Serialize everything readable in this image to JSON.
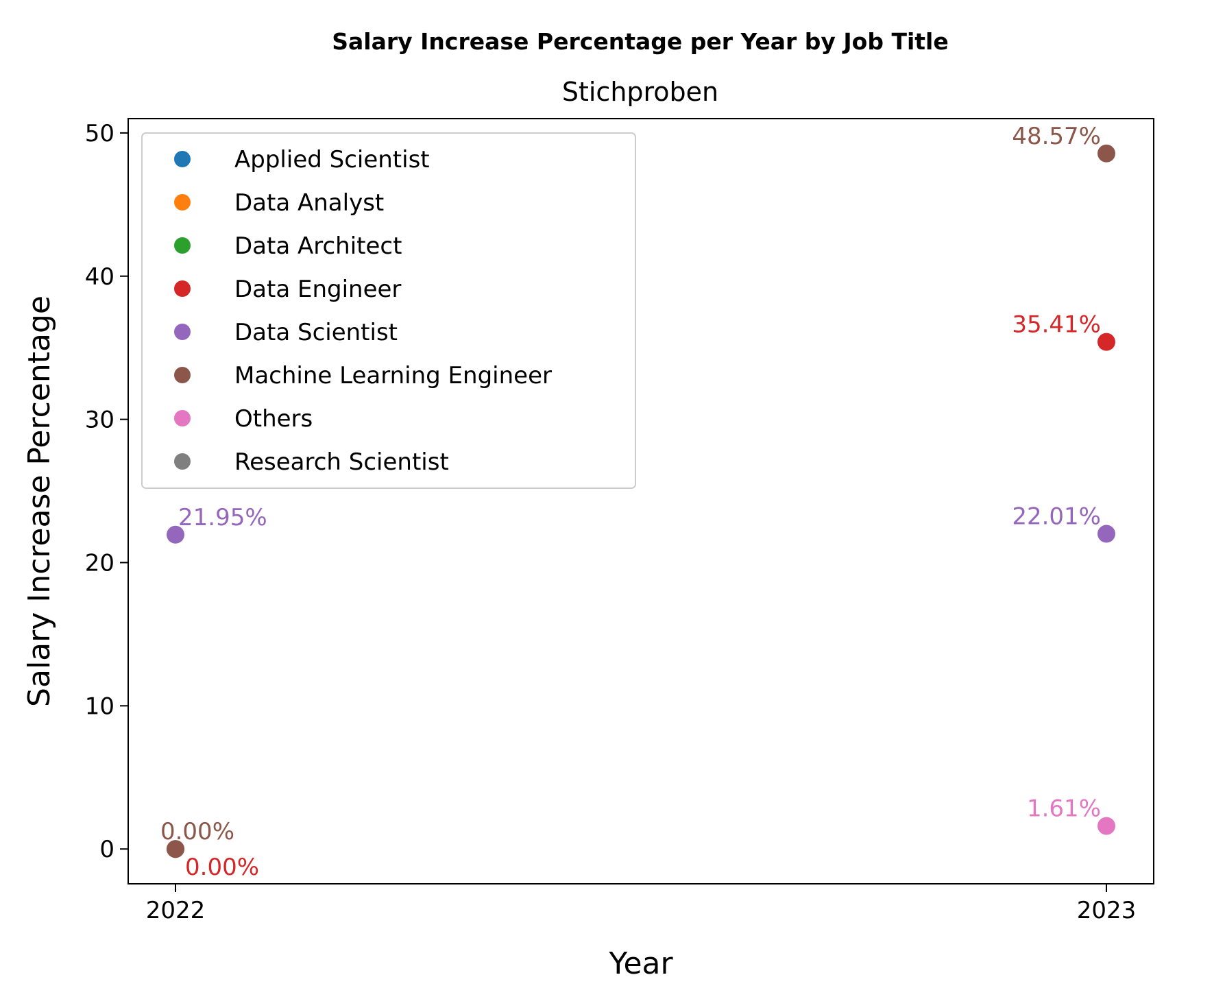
{
  "chart_data": {
    "type": "scatter",
    "title": "Salary Increase Percentage per Year by Job Title",
    "subtitle": "Stichproben",
    "xlabel": "Year",
    "ylabel": "Salary Increase Percentage",
    "x_categories": [
      "2022",
      "2023"
    ],
    "ylim": [
      -2.43,
      51.0
    ],
    "y_ticks": [
      "0",
      "10",
      "20",
      "30",
      "40",
      "50"
    ],
    "grid": false,
    "legend_position": "upper-left",
    "series": [
      {
        "name": "Applied Scientist",
        "color": "#1f77b4",
        "points": []
      },
      {
        "name": "Data Analyst",
        "color": "#ff7f0e",
        "points": []
      },
      {
        "name": "Data Architect",
        "color": "#2ca02c",
        "points": []
      },
      {
        "name": "Data Engineer",
        "color": "#d62728",
        "points": [
          {
            "x": "2022",
            "y": 0.0,
            "label": "0.00%"
          },
          {
            "x": "2023",
            "y": 35.41,
            "label": "35.41%"
          }
        ]
      },
      {
        "name": "Data Scientist",
        "color": "#9467bd",
        "points": [
          {
            "x": "2022",
            "y": 21.95,
            "label": "21.95%"
          },
          {
            "x": "2023",
            "y": 22.01,
            "label": "22.01%"
          }
        ]
      },
      {
        "name": "Machine Learning Engineer",
        "color": "#8c564b",
        "points": [
          {
            "x": "2022",
            "y": 0.0,
            "label": "0.00%"
          },
          {
            "x": "2023",
            "y": 48.57,
            "label": "48.57%"
          }
        ]
      },
      {
        "name": "Others",
        "color": "#e377c2",
        "points": [
          {
            "x": "2023",
            "y": 1.61,
            "label": "1.61%"
          }
        ]
      },
      {
        "name": "Research Scientist",
        "color": "#7f7f7f",
        "points": []
      }
    ]
  }
}
